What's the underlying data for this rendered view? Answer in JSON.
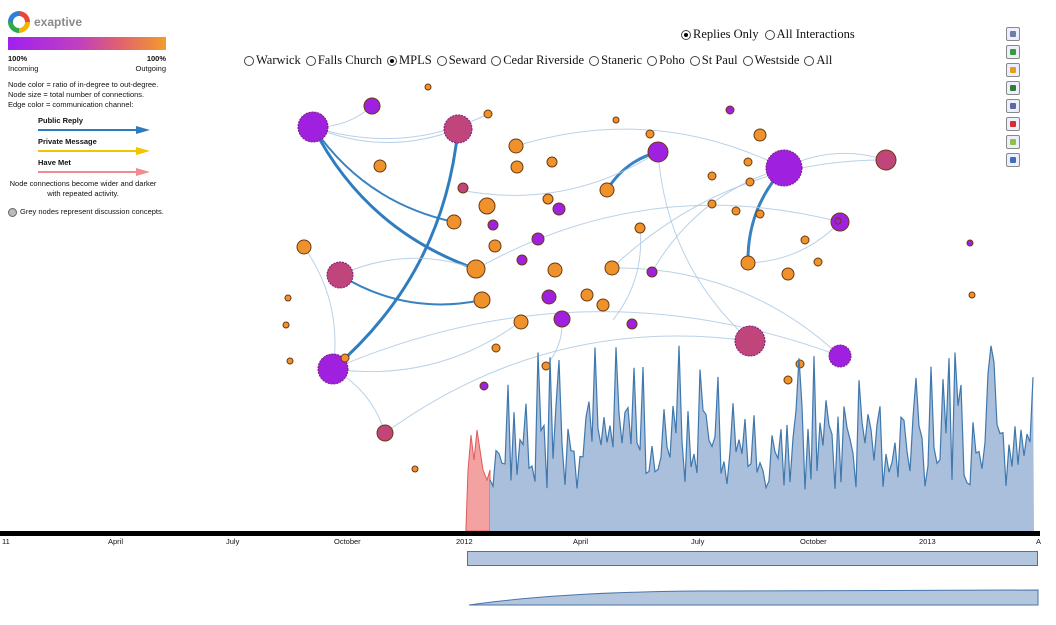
{
  "logo": {
    "text": "exaptive"
  },
  "legend": {
    "incoming_pct": "100%",
    "outgoing_pct": "100%",
    "incoming_label": "Incoming",
    "outgoing_label": "Outgoing",
    "desc1": "Node color = ratio of in-degree to out-degree.",
    "desc2": "Node size = total number of connections.",
    "desc3": "Edge color = communication channel:",
    "channels": [
      {
        "label": "Public Reply",
        "color": "#2e7bbf"
      },
      {
        "label": "Private Message",
        "color": "#f5c400"
      },
      {
        "label": "Have Met",
        "color": "#f28b8b"
      }
    ],
    "note": "Node connections become wider and darker with repeated activity.",
    "grey_note": "Grey nodes represent discussion concepts."
  },
  "interaction_mode": {
    "options": [
      "Replies Only",
      "All Interactions"
    ],
    "selected": "Replies Only"
  },
  "locations": {
    "options": [
      "Warwick",
      "Falls Church",
      "MPLS",
      "Seward",
      "Cedar Riverside",
      "Staneric",
      "Poho",
      "St Paul",
      "Westside",
      "All"
    ],
    "selected": "MPLS"
  },
  "toolbar": {
    "icons": [
      {
        "name": "print-icon",
        "color": "#6b7fa8"
      },
      {
        "name": "image-export-icon",
        "color": "#3a9a3a"
      },
      {
        "name": "settings-icon",
        "color": "#e0a020"
      },
      {
        "name": "layout-icon",
        "color": "#2e7d32"
      },
      {
        "name": "data-export-icon",
        "color": "#5a6aa0"
      },
      {
        "name": "pdf-icon",
        "color": "#d32f2f"
      },
      {
        "name": "fit-icon",
        "color": "#8bc34a"
      },
      {
        "name": "save-icon",
        "color": "#3f6fb5"
      }
    ]
  },
  "timeline": {
    "axis_labels": [
      "11",
      "April",
      "July",
      "October",
      "2012",
      "April",
      "July",
      "October",
      "2013",
      "A"
    ]
  },
  "colors": {
    "purple": "#a020e0",
    "magenta": "#c0457a",
    "orange": "#f0922b",
    "edge": "#2e7bbf",
    "area": "#a9bfdc",
    "area_line": "#3f78ad",
    "highlight": "#f4a1a1"
  }
}
